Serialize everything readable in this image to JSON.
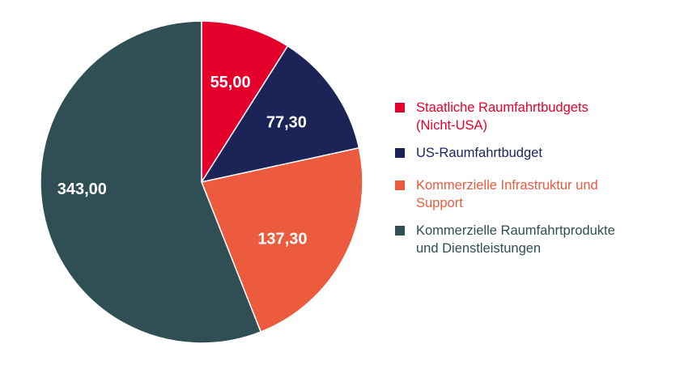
{
  "chart_data": {
    "type": "pie",
    "start_angle_deg": 0,
    "direction": "clockwise",
    "slices": [
      {
        "label": "Staatliche Raumfahrtbudgets (Nicht-USA)",
        "legend_lines": [
          "Staatliche Raumfahrtbudgets",
          "(Nicht-USA)"
        ],
        "value": 55.0,
        "display": "55,00",
        "color": "#e4002b"
      },
      {
        "label": "US-Raumfahrtbudget",
        "legend_lines": [
          "US-Raumfahrtbudget"
        ],
        "value": 77.3,
        "display": "77,30",
        "color": "#1c2457"
      },
      {
        "label": "Kommerzielle Infrastruktur und Support",
        "legend_lines": [
          "Kommerzielle Infrastruktur und",
          "Support"
        ],
        "value": 137.3,
        "display": "137,30",
        "color": "#ec5b3e"
      },
      {
        "label": "Kommerzielle Raumfahrtprodukte und Dienstleistungen",
        "legend_lines": [
          "Kommerzielle Raumfahrtprodukte",
          "und Dienstleistungen"
        ],
        "value": 343.0,
        "display": "343,00",
        "color": "#2f4f54"
      }
    ],
    "legend_position": "right"
  }
}
